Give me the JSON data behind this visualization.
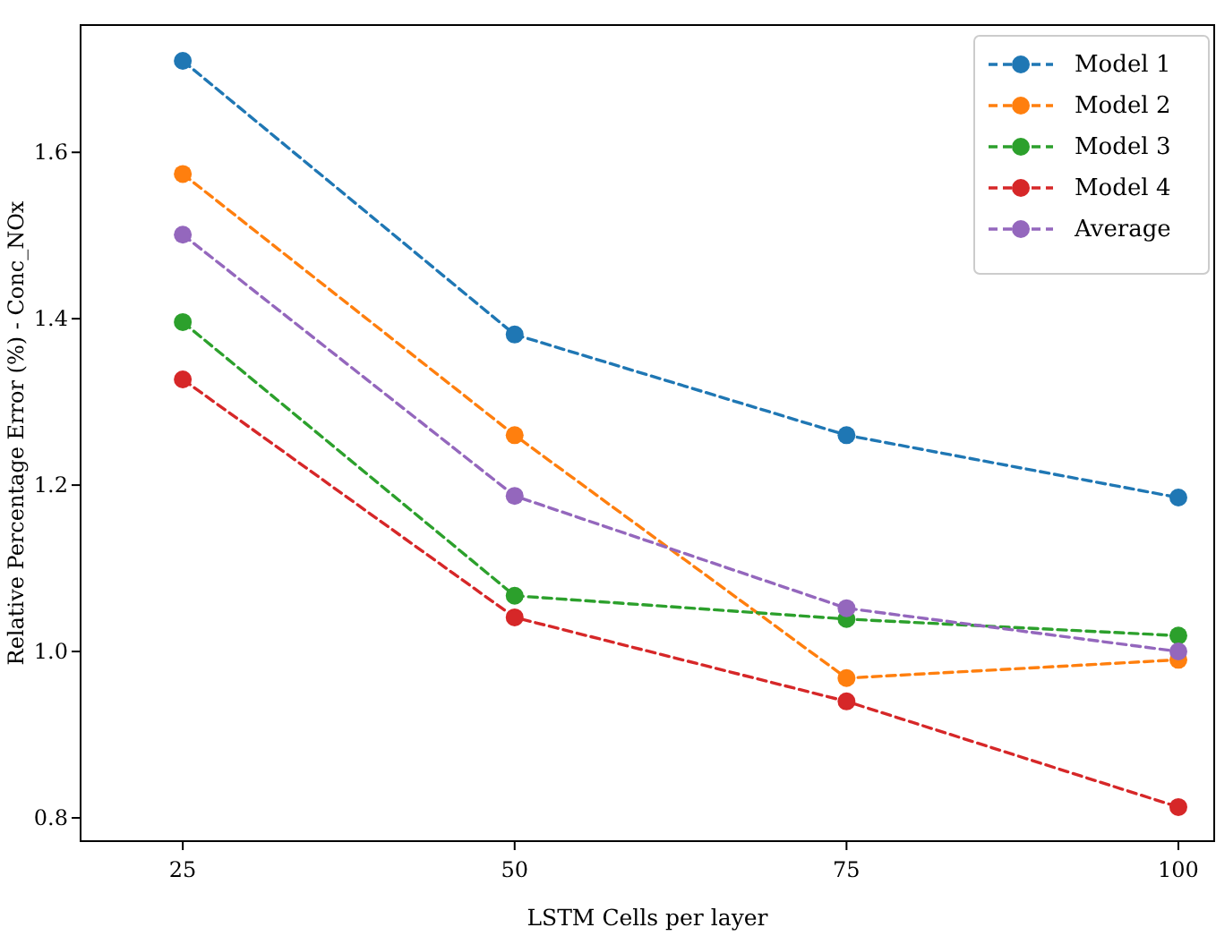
{
  "chart_data": {
    "type": "line",
    "xlabel": "LSTM Cells per layer",
    "ylabel": "Relative Percentage Error (%) - Conc_NOx",
    "x": [
      25,
      50,
      75,
      100
    ],
    "series": [
      {
        "name": "Model 1",
        "color": "#1f77b4",
        "values": [
          1.71,
          1.381,
          1.26,
          1.185
        ]
      },
      {
        "name": "Model 2",
        "color": "#ff7f0e",
        "values": [
          1.574,
          1.26,
          0.968,
          0.99
        ]
      },
      {
        "name": "Model 3",
        "color": "#2ca02c",
        "values": [
          1.396,
          1.067,
          1.039,
          1.019
        ]
      },
      {
        "name": "Model 4",
        "color": "#d62728",
        "values": [
          1.327,
          1.041,
          0.94,
          0.813
        ]
      },
      {
        "name": "Average",
        "color": "#9467bd",
        "values": [
          1.501,
          1.187,
          1.052,
          1.0
        ]
      }
    ],
    "xlim": [
      17.3,
      102.7
    ],
    "ylim": [
      0.772,
      1.753
    ],
    "xticks": [
      25,
      50,
      75,
      100
    ],
    "yticks": [
      {
        "value": 0.8,
        "label": "0.8"
      },
      {
        "value": 1.0,
        "label": "1.0"
      },
      {
        "value": 1.2,
        "label": "1.2"
      },
      {
        "value": 1.4,
        "label": "1.4"
      },
      {
        "value": 1.6,
        "label": "1.6"
      }
    ],
    "marker": "circle",
    "line_style": "dashed",
    "legend": "top right",
    "grid": false
  }
}
